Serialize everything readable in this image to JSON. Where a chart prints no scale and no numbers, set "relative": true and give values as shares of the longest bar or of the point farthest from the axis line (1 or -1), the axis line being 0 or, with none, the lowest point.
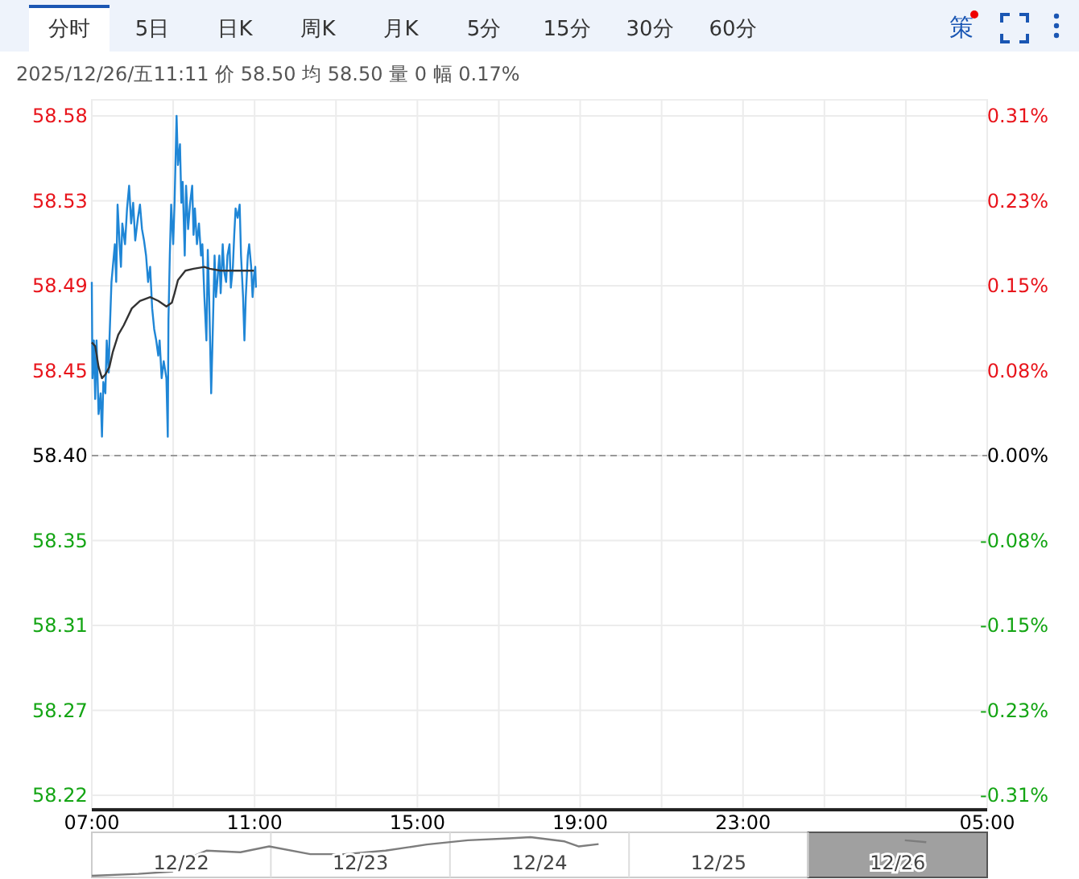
{
  "chart_data": [
    {
      "type": "line",
      "annotations": [
        "分时",
        "5日",
        "日K",
        "周K",
        "月K",
        "5分",
        "15分",
        "30分",
        "60分",
        "策",
        "2025/12/26/五11:11  价 58.50  均 58.50  量 0  幅 0.17%"
      ],
      "series": [
        {
          "color": "#1f86d6",
          "x": [
            "2025-12-26T07:00",
            "2025-12-26T07:01",
            "2025-12-26T07:03",
            "2025-12-26T07:05",
            "2025-12-26T07:07",
            "2025-12-26T07:10",
            "2025-12-26T07:13",
            "2025-12-26T07:15",
            "2025-12-26T07:17",
            "2025-12-26T07:20",
            "2025-12-26T07:22",
            "2025-12-26T07:25",
            "2025-12-26T07:26",
            "2025-12-26T07:29",
            "2025-12-26T07:31",
            "2025-12-26T07:34",
            "2025-12-26T07:36",
            "2025-12-26T07:38",
            "2025-12-26T07:41",
            "2025-12-26T07:43",
            "2025-12-26T07:45",
            "2025-12-26T07:49",
            "2025-12-26T07:52",
            "2025-12-26T07:55",
            "2025-12-26T07:58",
            "2025-12-26T08:01",
            "2025-12-26T08:04",
            "2025-12-26T08:08",
            "2025-12-26T08:11",
            "2025-12-26T08:14",
            "2025-12-26T08:17",
            "2025-12-26T08:20",
            "2025-12-26T08:23",
            "2025-12-26T08:26",
            "2025-12-26T08:29",
            "2025-12-26T08:32",
            "2025-12-26T08:35",
            "2025-12-26T08:38",
            "2025-12-26T08:40",
            "2025-12-26T08:43",
            "2025-12-26T08:46",
            "2025-12-26T08:50",
            "2025-12-26T08:52",
            "2025-12-26T08:53",
            "2025-12-26T08:55",
            "2025-12-26T08:57",
            "2025-12-26T09:00",
            "2025-12-26T09:02",
            "2025-12-26T09:05",
            "2025-12-26T09:07",
            "2025-12-26T09:10",
            "2025-12-26T09:12",
            "2025-12-26T09:14",
            "2025-12-26T09:17",
            "2025-12-26T09:19",
            "2025-12-26T09:22",
            "2025-12-26T09:25",
            "2025-12-26T09:28",
            "2025-12-26T09:30",
            "2025-12-26T09:32",
            "2025-12-26T09:35",
            "2025-12-26T09:38",
            "2025-12-26T09:41",
            "2025-12-26T09:43",
            "2025-12-26T09:46",
            "2025-12-26T09:49",
            "2025-12-26T09:51",
            "2025-12-26T09:53",
            "2025-12-26T09:56",
            "2025-12-26T09:58",
            "2025-12-26T10:01",
            "2025-12-26T10:03",
            "2025-12-26T10:05",
            "2025-12-26T10:08",
            "2025-12-26T10:10",
            "2025-12-26T10:13",
            "2025-12-26T10:15",
            "2025-12-26T10:18",
            "2025-12-26T10:20",
            "2025-12-26T10:23",
            "2025-12-26T10:25",
            "2025-12-26T10:28",
            "2025-12-26T10:30",
            "2025-12-26T10:32",
            "2025-12-26T10:35",
            "2025-12-26T10:38",
            "2025-12-26T10:40",
            "2025-12-26T10:43",
            "2025-12-26T10:45",
            "2025-12-26T10:47",
            "2025-12-26T10:50",
            "2025-12-26T10:52",
            "2025-12-26T10:55",
            "2025-12-26T10:57",
            "2025-12-26T10:59",
            "2025-12-26T11:01",
            "2025-12-26T11:02"
          ],
          "values": [
            58.492,
            58.441,
            58.461,
            58.43,
            58.461,
            58.422,
            58.433,
            58.41,
            58.439,
            58.433,
            58.461,
            58.444,
            58.461,
            58.492,
            58.5,
            58.512,
            58.492,
            58.533,
            58.512,
            58.5,
            58.523,
            58.512,
            58.531,
            58.543,
            58.523,
            58.534,
            58.514,
            58.526,
            58.533,
            58.52,
            58.514,
            58.506,
            58.492,
            58.5,
            58.478,
            58.467,
            58.461,
            58.453,
            58.461,
            58.441,
            58.45,
            58.441,
            58.41,
            58.472,
            58.506,
            58.533,
            58.512,
            58.534,
            58.58,
            58.554,
            58.565,
            58.534,
            58.545,
            58.506,
            58.543,
            58.52,
            58.534,
            58.543,
            58.517,
            58.531,
            58.512,
            58.523,
            58.506,
            58.512,
            58.484,
            58.461,
            58.509,
            58.484,
            58.433,
            58.461,
            58.506,
            58.484,
            58.492,
            58.506,
            58.486,
            58.512,
            58.498,
            58.492,
            58.506,
            58.512,
            58.489,
            58.5,
            58.517,
            58.531,
            58.526,
            58.533,
            58.506,
            58.484,
            58.461,
            58.484,
            58.506,
            58.512,
            58.5,
            58.484,
            58.495,
            58.5,
            58.489
          ]
        },
        {
          "color": "#333333",
          "x": [
            "2025-12-26T07:00",
            "2025-12-26T07:05",
            "2025-12-26T07:10",
            "2025-12-26T07:15",
            "2025-12-26T07:20",
            "2025-12-26T07:26",
            "2025-12-26T07:31",
            "2025-12-26T07:39",
            "2025-12-26T07:47",
            "2025-12-26T07:59",
            "2025-12-26T08:11",
            "2025-12-26T08:26",
            "2025-12-26T08:38",
            "2025-12-26T08:50",
            "2025-12-26T08:58",
            "2025-12-26T09:02",
            "2025-12-26T09:07",
            "2025-12-26T09:18",
            "2025-12-26T09:30",
            "2025-12-26T09:46",
            "2025-12-26T09:54",
            "2025-12-26T10:10",
            "2025-12-26T10:26",
            "2025-12-26T10:42",
            "2025-12-26T10:59"
          ],
          "values": [
            58.46,
            58.458,
            58.447,
            58.441,
            58.443,
            58.447,
            58.455,
            58.464,
            58.469,
            58.478,
            58.482,
            58.484,
            58.482,
            58.479,
            58.481,
            58.486,
            58.493,
            58.498,
            58.499,
            58.5,
            58.499,
            58.498,
            58.498,
            58.498,
            58.498
          ]
        }
      ],
      "xlim": [
        "2025-12-26T07:00",
        "2025-12-27T05:00"
      ],
      "xticks": [
        {
          "value": "2025-12-26T07:00",
          "label": "07:00"
        },
        {
          "value": "2025-12-26T09:00",
          "label": null
        },
        {
          "value": "2025-12-26T11:00",
          "label": "11:00"
        },
        {
          "value": "2025-12-26T13:00",
          "label": null
        },
        {
          "value": "2025-12-26T15:00",
          "label": "15:00"
        },
        {
          "value": "2025-12-26T17:00",
          "label": null
        },
        {
          "value": "2025-12-26T19:00",
          "label": "19:00"
        },
        {
          "value": "2025-12-26T21:00",
          "label": null
        },
        {
          "value": "2025-12-26T23:00",
          "label": "23:00"
        },
        {
          "value": "2025-12-27T01:00",
          "label": null
        },
        {
          "value": "2025-12-27T03:00",
          "label": null
        },
        {
          "value": "2025-12-27T05:00",
          "label": "05:00"
        }
      ],
      "ylim": [
        58.22,
        58.58
      ],
      "yticks": [
        {
          "value": 58.22,
          "label": "58.22"
        },
        {
          "value": 58.265,
          "label": "58.27"
        },
        {
          "value": 58.31,
          "label": "58.31"
        },
        {
          "value": 58.355,
          "label": "58.35"
        },
        {
          "value": 58.4,
          "label": "58.40"
        },
        {
          "value": 58.445,
          "label": "58.45"
        },
        {
          "value": 58.49,
          "label": "58.49"
        },
        {
          "value": 58.535,
          "label": "58.53"
        },
        {
          "value": 58.58,
          "label": "58.58"
        }
      ],
      "y2lim": [
        -0.31,
        0.31
      ],
      "y2ticks": [
        {
          "value": -0.31,
          "label": "-0.31%"
        },
        {
          "value": -0.2325,
          "label": "-0.23%"
        },
        {
          "value": -0.155,
          "label": "-0.15%"
        },
        {
          "value": -0.0775,
          "label": "-0.08%"
        },
        {
          "value": 0,
          "label": "0.00%"
        },
        {
          "value": 0.0775,
          "label": "0.08%"
        },
        {
          "value": 0.155,
          "label": "0.15%"
        },
        {
          "value": 0.2325,
          "label": "0.23%"
        },
        {
          "value": 0.31,
          "label": "0.31%"
        }
      ],
      "ref_lines": [
        {
          "axis": "y",
          "value": 58.4,
          "color": "#999999",
          "line_style": "dashed"
        }
      ],
      "grid": true
    },
    {
      "type": "line",
      "relative": true,
      "x": [
        "2025-12-21T12:00",
        "2025-12-21T18:14",
        "2025-12-21T22:48",
        "2025-12-22T00:14",
        "2025-12-22T03:22",
        "2025-12-22T07:55",
        "2025-12-22T11:46",
        "2025-12-22T17:17",
        "2025-12-22T21:50",
        "2025-12-23T03:22",
        "2025-12-23T08:53",
        "2025-12-23T14:24",
        "2025-12-23T19:55",
        "2025-12-23T22:48",
        "2025-12-24T03:22",
        "2025-12-24T05:17",
        "2025-12-24T07:55",
        "2025-12-26T00:58",
        "2025-12-26T03:50"
      ],
      "values": [
        0,
        0.05,
        0.11,
        0.4,
        0.65,
        0.61,
        0.76,
        0.56,
        0.56,
        0.65,
        0.81,
        0.92,
        0.97,
        1.0,
        0.89,
        0.76,
        0.82,
        0.92,
        0.87
      ],
      "color": "#7d7d7d",
      "xlim": [
        "2025-12-21T12:00",
        "2025-12-26T12:00"
      ],
      "xticks": [
        {
          "value": "2025-12-22",
          "label": "12/22"
        },
        {
          "value": "2025-12-23",
          "label": "12/23"
        },
        {
          "value": "2025-12-24",
          "label": "12/24"
        },
        {
          "value": "2025-12-25",
          "label": "12/25"
        },
        {
          "value": "2025-12-26",
          "label": "12/26"
        }
      ],
      "bands": [
        {
          "axis": "x",
          "from": "2025-12-25T12:00",
          "to": "2025-12-26T12:00",
          "color": "#a0a0a0"
        }
      ]
    }
  ]
}
